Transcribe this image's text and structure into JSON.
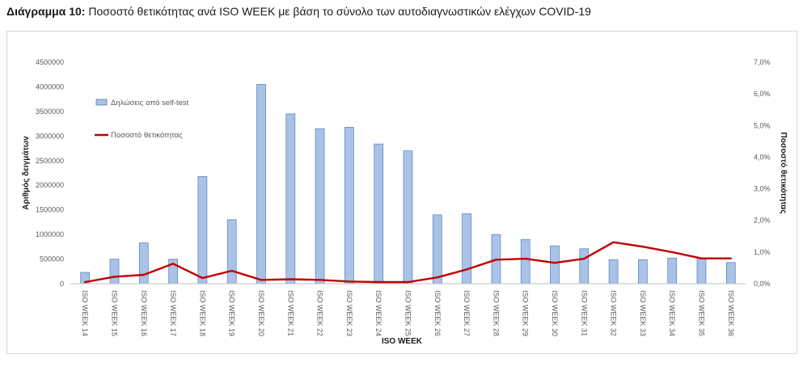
{
  "title": {
    "prefix": "Διάγραμμα 10:",
    "text": "Ποσοστό θετικότητας ανά ISO WEEK με βάση το σύνολο των αυτοδιαγνωστικών ελέγχων COVID-19"
  },
  "chart_data": {
    "type": "bar",
    "xlabel": "ISO WEEK",
    "ylabel": "Αριθμός δειγμάτων",
    "y2label": "Ποσοστό θετικότητας",
    "ylim": [
      0,
      4500000
    ],
    "y2lim": [
      0,
      7.0
    ],
    "yticks": [
      "0",
      "500000",
      "1000000",
      "1500000",
      "2000000",
      "2500000",
      "3000000",
      "3500000",
      "4000000",
      "4500000"
    ],
    "y2ticks": [
      "0,0%",
      "1,0%",
      "2,0%",
      "3,0%",
      "4,0%",
      "5,0%",
      "6,0%",
      "7,0%"
    ],
    "categories": [
      "ISO WEEK 14",
      "ISO WEEK 15",
      "ISO WEEK 16",
      "ISO WEEK 17",
      "ISO WEEK 18",
      "ISO WEEK 19",
      "ISO WEEK 20",
      "ISO WEEK 21",
      "ISO WEEK 22",
      "ISO WEEK 23",
      "ISO WEEK 24",
      "ISO WEEK 25",
      "ISO WEEK 26",
      "ISO WEEK 27",
      "ISO WEEK 28",
      "ISO WEEK 29",
      "ISO WEEK 30",
      "ISO WEEK 31",
      "ISO WEEK 32",
      "ISO WEEK 33",
      "ISO WEEK 34",
      "ISO WEEK 35",
      "ISO WEEK 36"
    ],
    "series": [
      {
        "name": "Δηλώσεις από self-test",
        "type": "bar",
        "axis": "left",
        "color": "#a9c2e6",
        "edge": "#4f81bd",
        "values": [
          230000,
          500000,
          830000,
          500000,
          2180000,
          1300000,
          4050000,
          3450000,
          3150000,
          3180000,
          2840000,
          2700000,
          1400000,
          1420000,
          1000000,
          900000,
          770000,
          710000,
          490000,
          490000,
          520000,
          520000,
          430000
        ]
      },
      {
        "name": "Ποσοστό θετικότητας",
        "type": "line",
        "axis": "right",
        "color": "#c00000",
        "values": [
          0.05,
          0.22,
          0.28,
          0.63,
          0.18,
          0.41,
          0.12,
          0.14,
          0.12,
          0.07,
          0.05,
          0.05,
          0.2,
          0.45,
          0.76,
          0.79,
          0.66,
          0.79,
          1.31,
          1.17,
          1.0,
          0.8,
          0.8
        ]
      }
    ],
    "legend": "top-left"
  }
}
